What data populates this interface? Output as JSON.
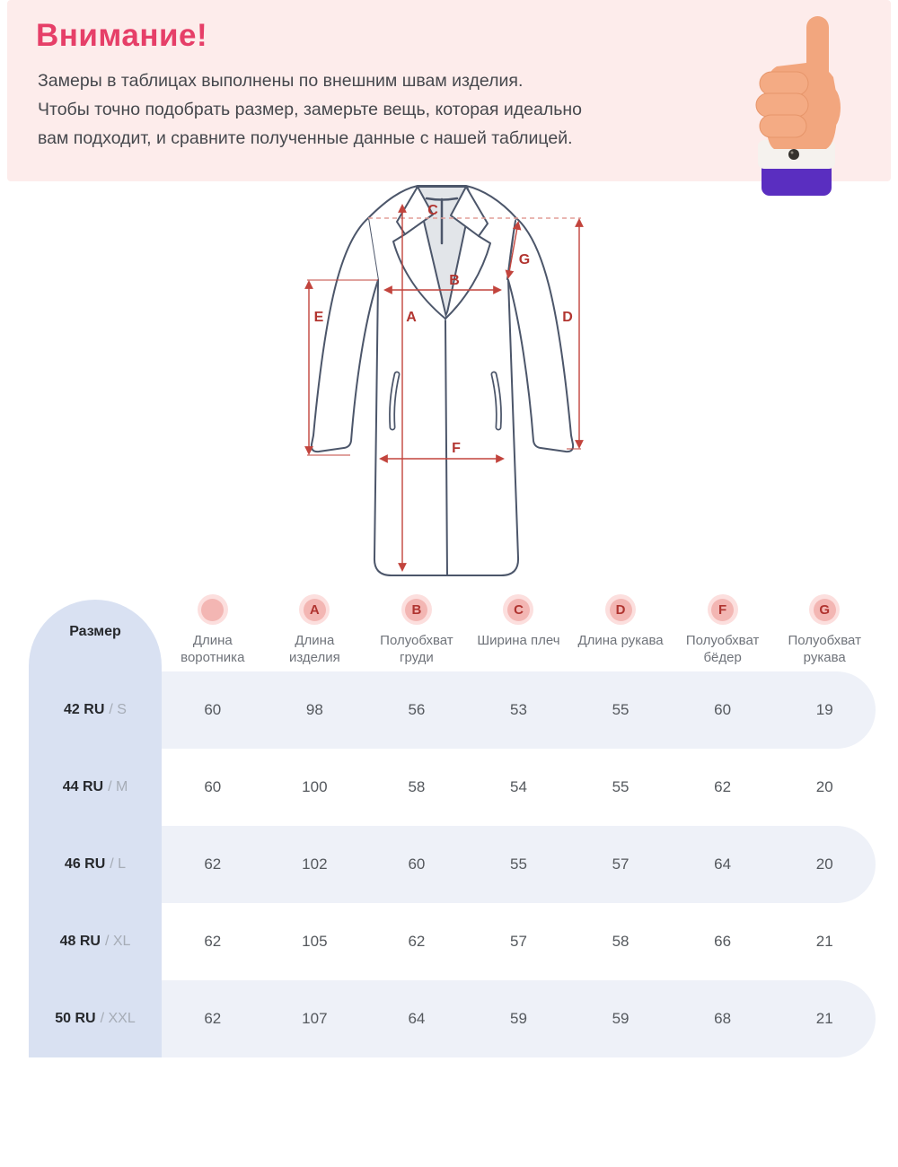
{
  "banner": {
    "title": "Внимание!",
    "lines": [
      "Замеры в таблицах выполнены по внешним швам изделия.",
      "Чтобы точно подобрать размер, замерьте вещь, которая идеально",
      "вам подходит, и сравните полученные данные с нашей таблицей."
    ]
  },
  "diagram": {
    "markers": [
      "A",
      "B",
      "C",
      "D",
      "E",
      "F",
      "G"
    ]
  },
  "table": {
    "size_header": "Размер",
    "columns": [
      {
        "letter": "",
        "label": "Длина воротника"
      },
      {
        "letter": "A",
        "label": "Длина изделия"
      },
      {
        "letter": "B",
        "label": "Полуобхват груди"
      },
      {
        "letter": "C",
        "label": "Ширина плеч"
      },
      {
        "letter": "D",
        "label": "Длина рукава"
      },
      {
        "letter": "F",
        "label": "Полуобхват бёдер"
      },
      {
        "letter": "G",
        "label": "Полуобхват рукава"
      }
    ],
    "rows": [
      {
        "size": "42 RU",
        "suffix": "/ S",
        "values": [
          "60",
          "98",
          "56",
          "53",
          "55",
          "60",
          "19"
        ]
      },
      {
        "size": "44 RU",
        "suffix": "/ M",
        "values": [
          "60",
          "100",
          "58",
          "54",
          "55",
          "62",
          "20"
        ]
      },
      {
        "size": "46 RU",
        "suffix": "/ L",
        "values": [
          "62",
          "102",
          "60",
          "55",
          "57",
          "64",
          "20"
        ]
      },
      {
        "size": "48 RU",
        "suffix": "/ XL",
        "values": [
          "62",
          "105",
          "62",
          "57",
          "58",
          "66",
          "21"
        ]
      },
      {
        "size": "50 RU",
        "suffix": "/ XXL",
        "values": [
          "62",
          "107",
          "64",
          "59",
          "59",
          "68",
          "21"
        ]
      }
    ]
  },
  "colors": {
    "banner_bg": "#fdeceb",
    "title_pink": "#e63f68",
    "measure_red": "#c2443d",
    "marker_red": "#b23530",
    "badge_bg": "#f3b6b3",
    "stripe": "#eef1f8",
    "size_column_bg": "#d9e1f2",
    "coat_outline": "#4c566a",
    "sleeve_purple": "#5a2ec0"
  }
}
